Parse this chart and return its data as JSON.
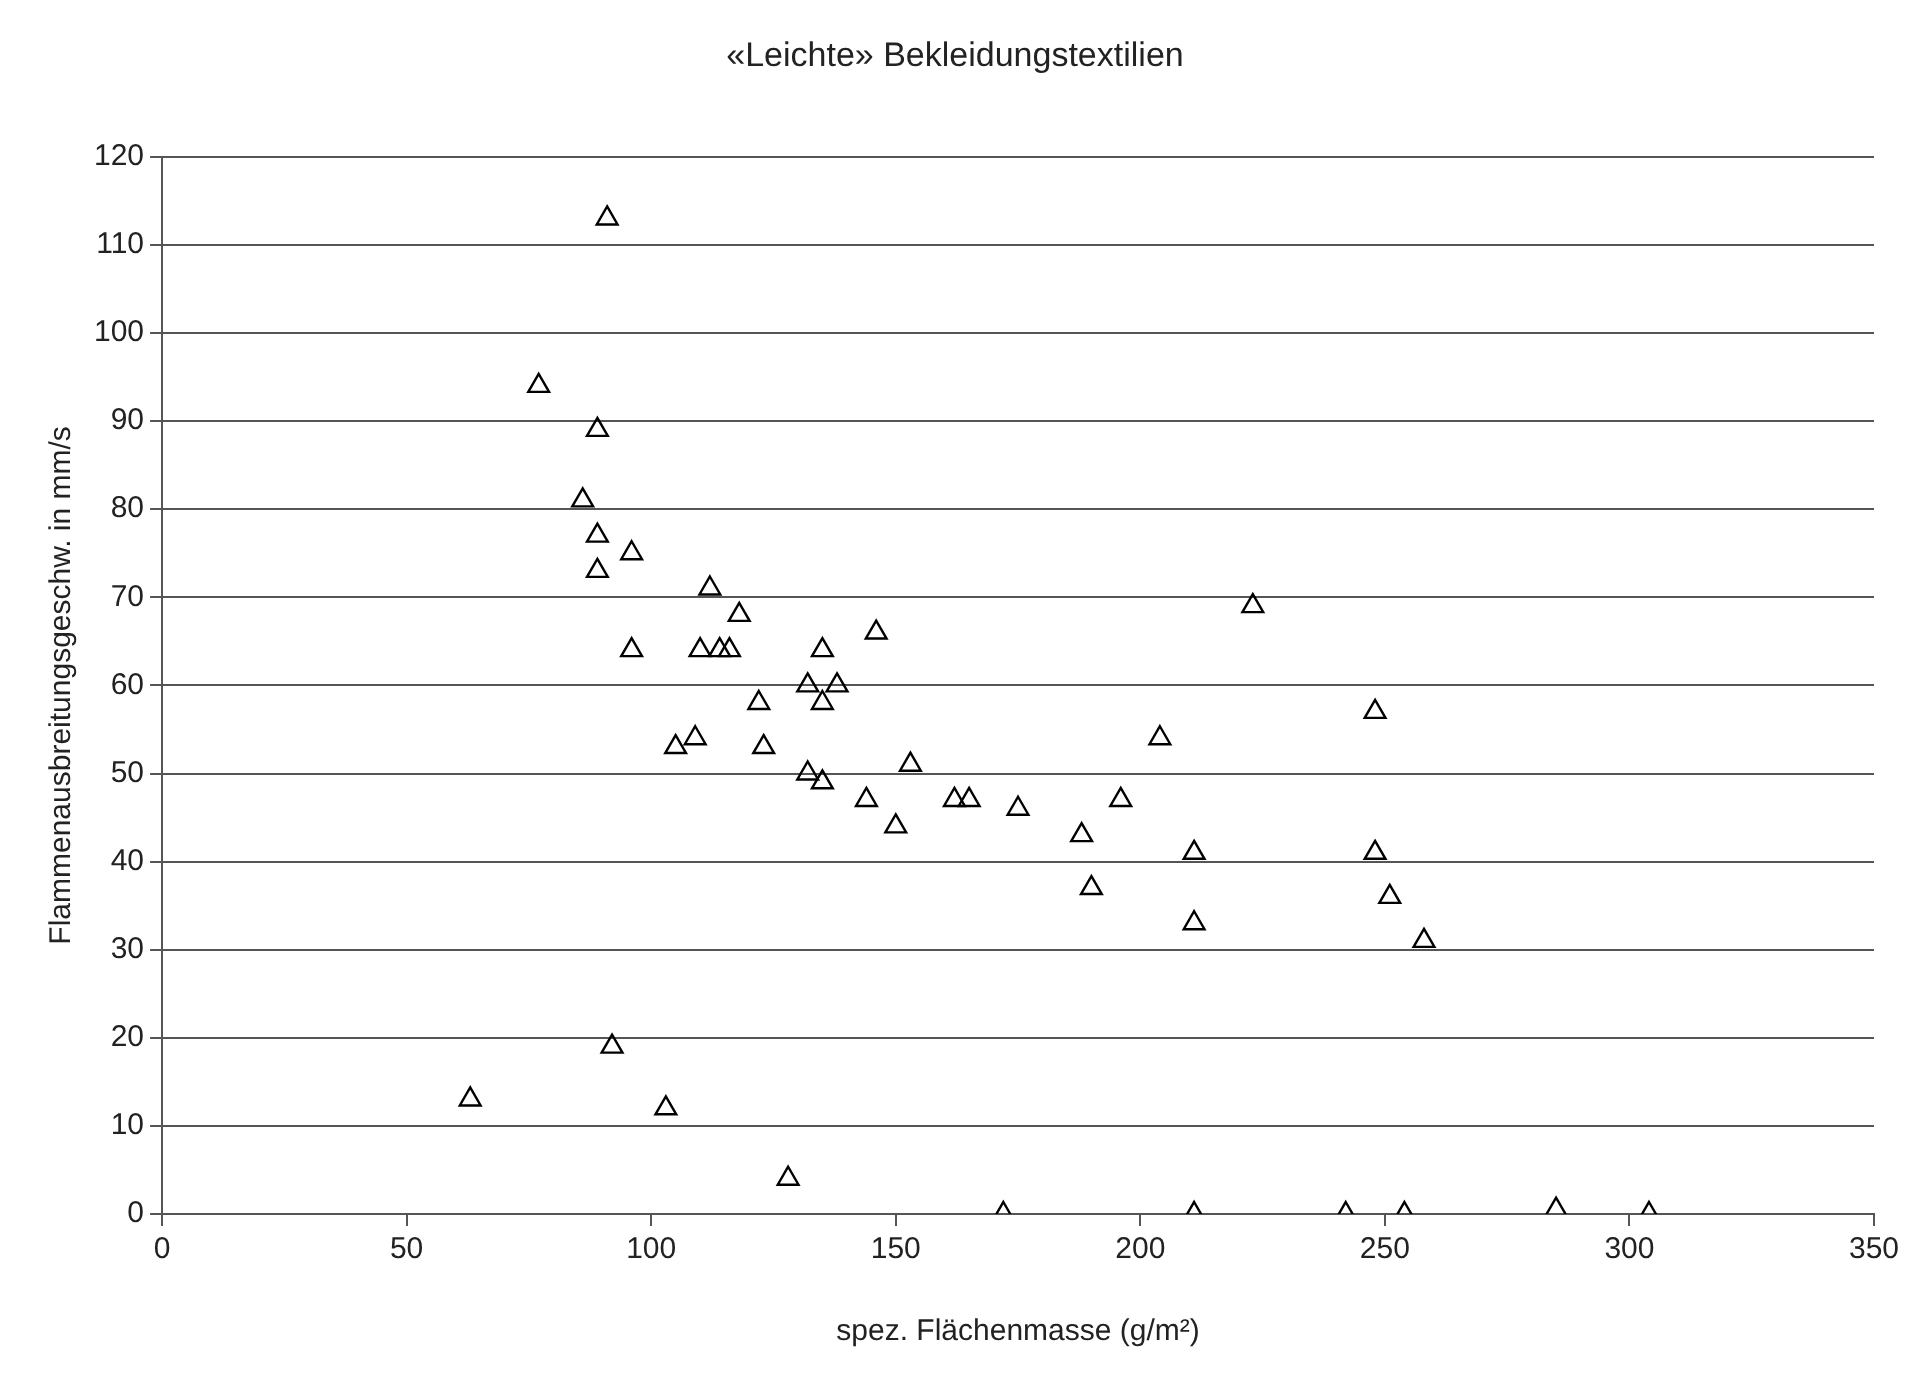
{
  "chart_data": {
    "type": "scatter",
    "title": "«Leichte» Bekleidungstextilien",
    "xlabel": "spez. Flächenmasse (g/m²)",
    "ylabel": "Flammenausbreitungsgeschw. in mm/s",
    "x": [
      63,
      77,
      91,
      89,
      86,
      89,
      89,
      96,
      112,
      118,
      96,
      110,
      114,
      116,
      135,
      146,
      122,
      132,
      138,
      135,
      105,
      109,
      123,
      132,
      135,
      153,
      144,
      150,
      162,
      165,
      175,
      196,
      188,
      204,
      223,
      248,
      211,
      248,
      190,
      251,
      211,
      258,
      92,
      103,
      128,
      172,
      211,
      242,
      254,
      285,
      304
    ],
    "values": [
      13,
      94,
      113,
      89,
      81,
      77,
      73,
      75,
      71,
      68,
      64,
      64,
      64,
      64,
      64,
      66,
      58,
      60,
      60,
      58,
      53,
      54,
      53,
      50,
      49,
      51,
      47,
      44,
      47,
      47,
      46,
      47,
      43,
      54,
      69,
      57,
      41,
      41,
      37,
      36,
      33,
      31,
      19,
      12,
      4,
      0,
      0,
      0,
      0,
      0.5,
      0
    ],
    "color": "#000000",
    "marker": "triangle",
    "xlim": [
      0,
      350
    ],
    "xticks": [
      0,
      50,
      100,
      150,
      200,
      250,
      300,
      350
    ],
    "ylim": [
      0,
      120
    ],
    "yticks": [
      0,
      10,
      20,
      30,
      40,
      50,
      60,
      70,
      80,
      90,
      100,
      110,
      120
    ],
    "grid": "y"
  }
}
